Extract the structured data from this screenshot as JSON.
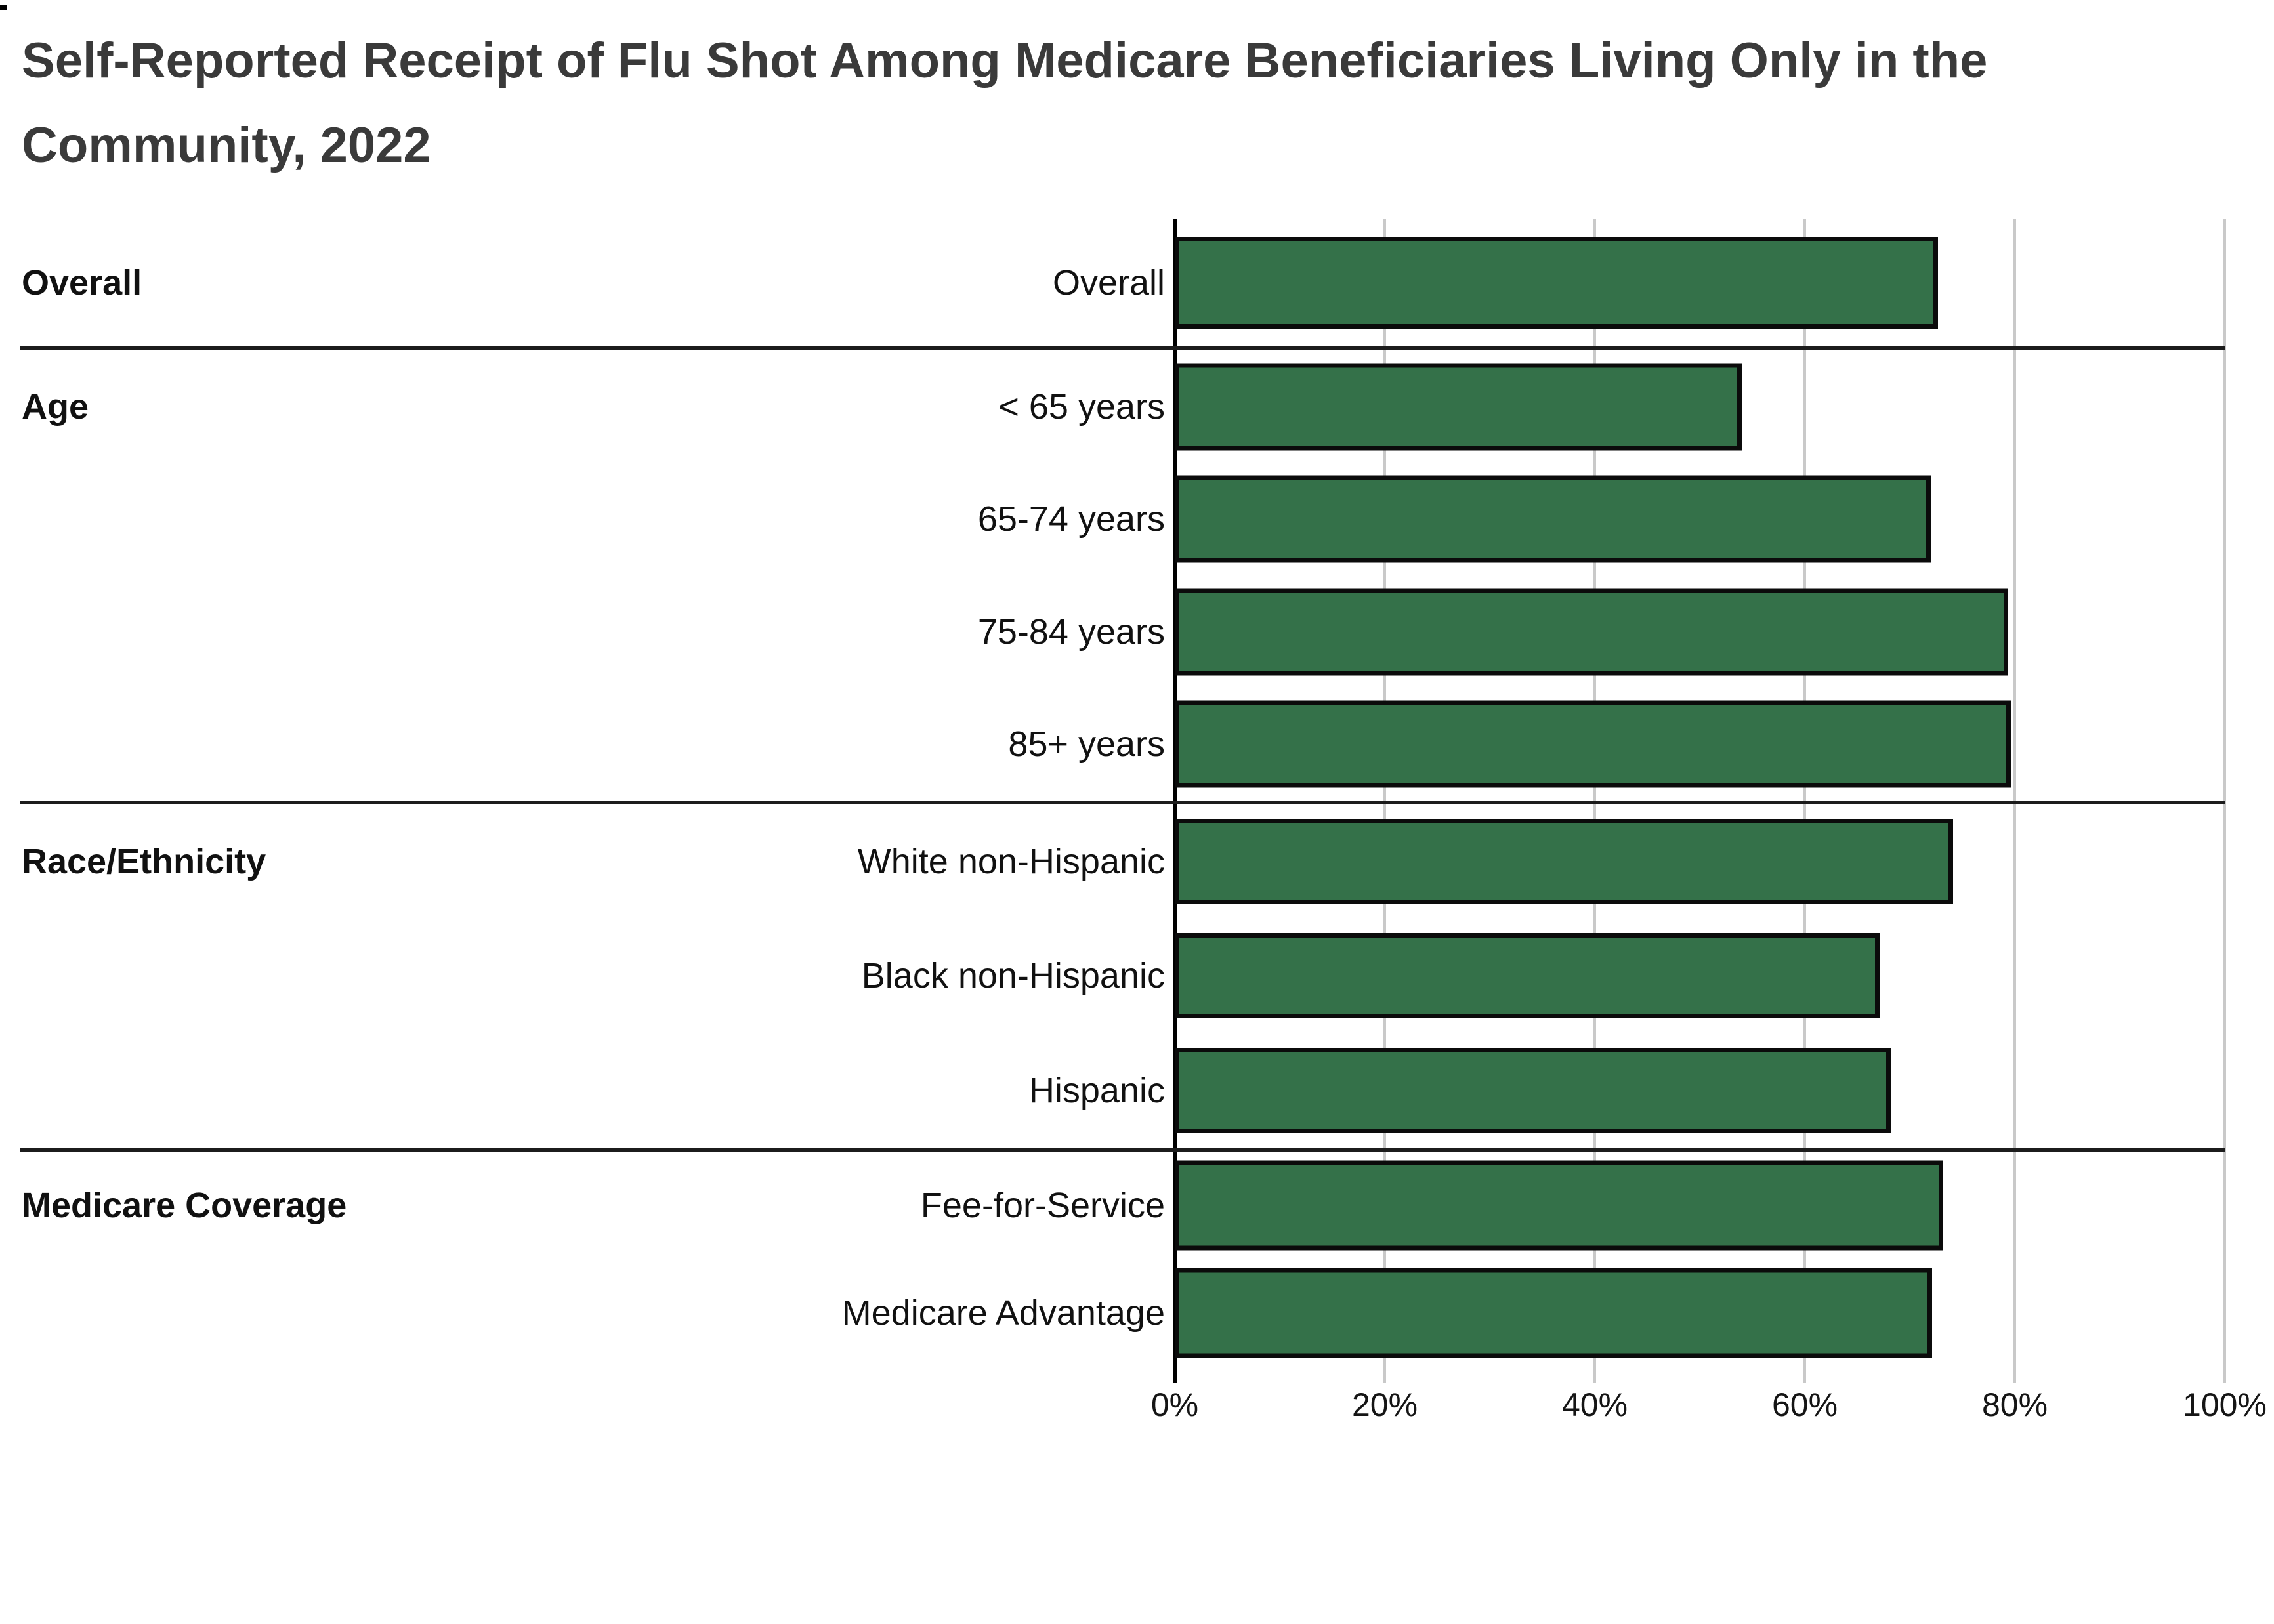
{
  "title": "Self-Reported Receipt of Flu Shot Among Medicare Beneficiaries Living Only in the Community, 2022",
  "chart_data": {
    "type": "bar",
    "orientation": "horizontal",
    "title": "Self-Reported Receipt of Flu Shot Among Medicare Beneficiaries Living Only in the Community, 2022",
    "xlabel": "",
    "ylabel": "",
    "unit": "percent",
    "xlim": [
      0,
      100
    ],
    "grid": "vertical gridlines",
    "legend": "none",
    "data_labels": "none",
    "bar_color": "#347149",
    "bar_border_color": "#0b0b0b",
    "x_ticks": [
      {
        "value": 0,
        "label": "0%"
      },
      {
        "value": 20,
        "label": "20%"
      },
      {
        "value": 40,
        "label": "40%"
      },
      {
        "value": 60,
        "label": "60%"
      },
      {
        "value": 80,
        "label": "80%"
      },
      {
        "value": 100,
        "label": "100%"
      }
    ],
    "groups": [
      {
        "label": "Overall",
        "rows": [
          {
            "label": "Overall",
            "value": 72.7
          }
        ]
      },
      {
        "label": "Age",
        "rows": [
          {
            "label": "< 65 years",
            "value": 54.0
          },
          {
            "label": "65-74 years",
            "value": 72.0
          },
          {
            "label": "75-84 years",
            "value": 79.4
          },
          {
            "label": "85+ years",
            "value": 79.6
          }
        ]
      },
      {
        "label": "Race/Ethnicity",
        "rows": [
          {
            "label": "White non-Hispanic",
            "value": 74.1
          },
          {
            "label": "Black non-Hispanic",
            "value": 67.1
          },
          {
            "label": "Hispanic",
            "value": 68.2
          }
        ]
      },
      {
        "label": "Medicare Coverage",
        "rows": [
          {
            "label": "Fee-for-Service",
            "value": 73.2
          },
          {
            "label": "Medicare Advantage",
            "value": 72.1
          }
        ]
      }
    ]
  }
}
